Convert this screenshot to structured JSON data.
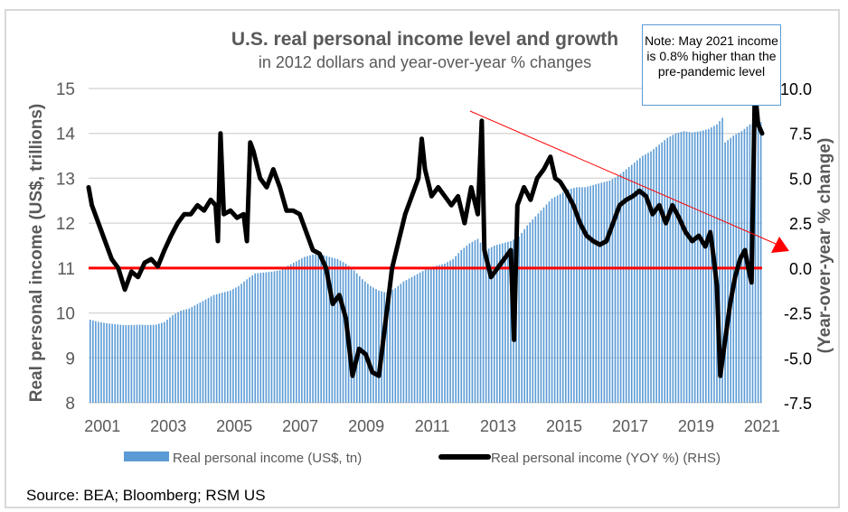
{
  "chart_data": {
    "type": "bar+line",
    "title": "U.S. real personal income level and growth",
    "subtitle": "in 2012 dollars and year-over-year % changes",
    "ylabel": "Real personal income (US$, trillions)",
    "y2label": "(Year-over-year % change)",
    "ylim": [
      8,
      15
    ],
    "y2lim": [
      -7.5,
      10.0
    ],
    "yticks": [
      "8",
      "9",
      "10",
      "11",
      "12",
      "13",
      "14",
      "15"
    ],
    "y2ticks": [
      "-7.5",
      "-5.0",
      "-2.5",
      "0.0",
      "2.5",
      "5.0",
      "7.5",
      "10.0"
    ],
    "xticks": [
      "2001",
      "2003",
      "2005",
      "2007",
      "2009",
      "2011",
      "2013",
      "2015",
      "2017",
      "2019",
      "2021"
    ],
    "xrange": [
      2001.0,
      2021.42
    ],
    "grid": true,
    "legend_position": "bottom",
    "reference_line_y2": 0.0,
    "series": [
      {
        "name": "Real personal income (US$, tn)",
        "type": "bar",
        "axis": "left",
        "color": "#5b9bd5",
        "x": [
          2001.0,
          2001.25,
          2001.5,
          2001.75,
          2002.0,
          2002.25,
          2002.5,
          2002.75,
          2003.0,
          2003.25,
          2003.5,
          2003.75,
          2004.0,
          2004.25,
          2004.5,
          2004.75,
          2005.0,
          2005.25,
          2005.5,
          2005.75,
          2006.0,
          2006.25,
          2006.5,
          2006.75,
          2007.0,
          2007.25,
          2007.5,
          2007.75,
          2008.0,
          2008.25,
          2008.5,
          2008.75,
          2009.0,
          2009.25,
          2009.5,
          2009.75,
          2010.0,
          2010.25,
          2010.5,
          2010.75,
          2011.0,
          2011.25,
          2011.5,
          2011.75,
          2012.0,
          2012.25,
          2012.5,
          2012.75,
          2013.0,
          2013.25,
          2013.5,
          2013.75,
          2014.0,
          2014.25,
          2014.5,
          2014.75,
          2015.0,
          2015.25,
          2015.5,
          2015.75,
          2016.0,
          2016.25,
          2016.5,
          2016.75,
          2017.0,
          2017.25,
          2017.5,
          2017.75,
          2018.0,
          2018.25,
          2018.5,
          2018.75,
          2019.0,
          2019.25,
          2019.5,
          2019.75,
          2020.0,
          2020.17,
          2020.25,
          2020.5,
          2020.75,
          2021.0,
          2021.17,
          2021.25,
          2021.33
        ],
        "values": [
          9.85,
          9.8,
          9.77,
          9.75,
          9.73,
          9.73,
          9.74,
          9.73,
          9.74,
          9.8,
          9.95,
          10.05,
          10.1,
          10.2,
          10.3,
          10.4,
          10.45,
          10.5,
          10.6,
          10.75,
          10.88,
          10.9,
          10.92,
          10.95,
          11.05,
          11.15,
          11.25,
          11.3,
          11.3,
          11.25,
          11.2,
          11.1,
          10.95,
          10.75,
          10.6,
          10.5,
          10.45,
          10.55,
          10.7,
          10.8,
          10.9,
          11.0,
          11.05,
          11.1,
          11.2,
          11.4,
          11.55,
          11.65,
          11.4,
          11.5,
          11.55,
          11.6,
          11.7,
          11.95,
          12.15,
          12.35,
          12.55,
          12.65,
          12.75,
          12.8,
          12.8,
          12.85,
          12.9,
          12.95,
          13.05,
          13.2,
          13.35,
          13.5,
          13.6,
          13.75,
          13.9,
          14.0,
          14.05,
          14.02,
          14.05,
          14.1,
          14.2,
          14.35,
          13.8,
          13.95,
          14.05,
          14.2,
          14.2,
          14.2,
          14.25
        ]
      },
      {
        "name": "Real personal income (YOY %) (RHS)",
        "type": "line",
        "axis": "right",
        "color": "#000000",
        "x": [
          2001.0,
          2001.1,
          2001.3,
          2001.5,
          2001.7,
          2001.9,
          2002.1,
          2002.3,
          2002.5,
          2002.7,
          2002.9,
          2003.1,
          2003.3,
          2003.5,
          2003.7,
          2003.9,
          2004.1,
          2004.3,
          2004.5,
          2004.7,
          2004.85,
          2004.92,
          2005.0,
          2005.1,
          2005.3,
          2005.5,
          2005.7,
          2005.8,
          2005.9,
          2006.0,
          2006.2,
          2006.4,
          2006.6,
          2006.8,
          2007.0,
          2007.2,
          2007.4,
          2007.6,
          2007.8,
          2008.0,
          2008.2,
          2008.4,
          2008.6,
          2008.8,
          2009.0,
          2009.2,
          2009.4,
          2009.6,
          2009.8,
          2010.0,
          2010.2,
          2010.4,
          2010.6,
          2010.8,
          2011.0,
          2011.1,
          2011.2,
          2011.4,
          2011.6,
          2011.8,
          2012.0,
          2012.2,
          2012.4,
          2012.6,
          2012.8,
          2012.92,
          2013.0,
          2013.2,
          2013.4,
          2013.6,
          2013.8,
          2013.9,
          2014.0,
          2014.2,
          2014.4,
          2014.6,
          2014.8,
          2015.0,
          2015.15,
          2015.3,
          2015.5,
          2015.7,
          2015.9,
          2016.1,
          2016.3,
          2016.5,
          2016.7,
          2016.9,
          2017.1,
          2017.3,
          2017.5,
          2017.7,
          2017.9,
          2018.1,
          2018.3,
          2018.5,
          2018.7,
          2018.9,
          2019.1,
          2019.3,
          2019.5,
          2019.7,
          2019.85,
          2019.95,
          2020.05,
          2020.15,
          2020.3,
          2020.45,
          2020.6,
          2020.75,
          2020.9,
          2021.0,
          2021.1,
          2021.2,
          2021.3,
          2021.42
        ],
        "values": [
          4.5,
          3.5,
          2.5,
          1.5,
          0.5,
          0.0,
          -1.2,
          -0.2,
          -0.5,
          0.3,
          0.5,
          0.1,
          1.0,
          1.8,
          2.5,
          3.0,
          3.0,
          3.5,
          3.2,
          3.8,
          3.5,
          1.5,
          7.5,
          3.0,
          3.2,
          2.8,
          3.0,
          1.5,
          7.0,
          6.5,
          5.0,
          4.5,
          5.5,
          4.5,
          3.2,
          3.2,
          3.0,
          2.0,
          1.0,
          0.8,
          0.0,
          -2.0,
          -1.5,
          -2.8,
          -6.0,
          -4.5,
          -4.8,
          -5.8,
          -6.0,
          -3.0,
          0.0,
          1.5,
          3.0,
          4.0,
          5.0,
          7.2,
          5.5,
          4.0,
          4.5,
          4.0,
          3.5,
          4.0,
          2.5,
          4.5,
          3.0,
          8.2,
          1.0,
          -0.5,
          0.0,
          0.5,
          1.0,
          -4.0,
          3.5,
          4.5,
          3.8,
          5.0,
          5.5,
          6.2,
          5.0,
          4.8,
          4.2,
          3.5,
          2.5,
          1.8,
          1.5,
          1.3,
          1.5,
          2.5,
          3.5,
          3.8,
          4.0,
          4.3,
          4.0,
          3.0,
          3.5,
          2.5,
          3.5,
          2.8,
          2.0,
          1.5,
          1.8,
          1.2,
          2.0,
          0.6,
          -1.0,
          -6.0,
          -4.0,
          -2.0,
          -0.5,
          0.5,
          1.0,
          0.0,
          -0.8,
          10.0,
          8.0,
          7.5
        ]
      }
    ],
    "annotation": {
      "trend_arrow_color": "#ff0000",
      "note": "Note: May 2021 income is 0.8% higher than the pre-pandemic level"
    }
  },
  "source": "Source: BEA; Bloomberg; RSM US"
}
